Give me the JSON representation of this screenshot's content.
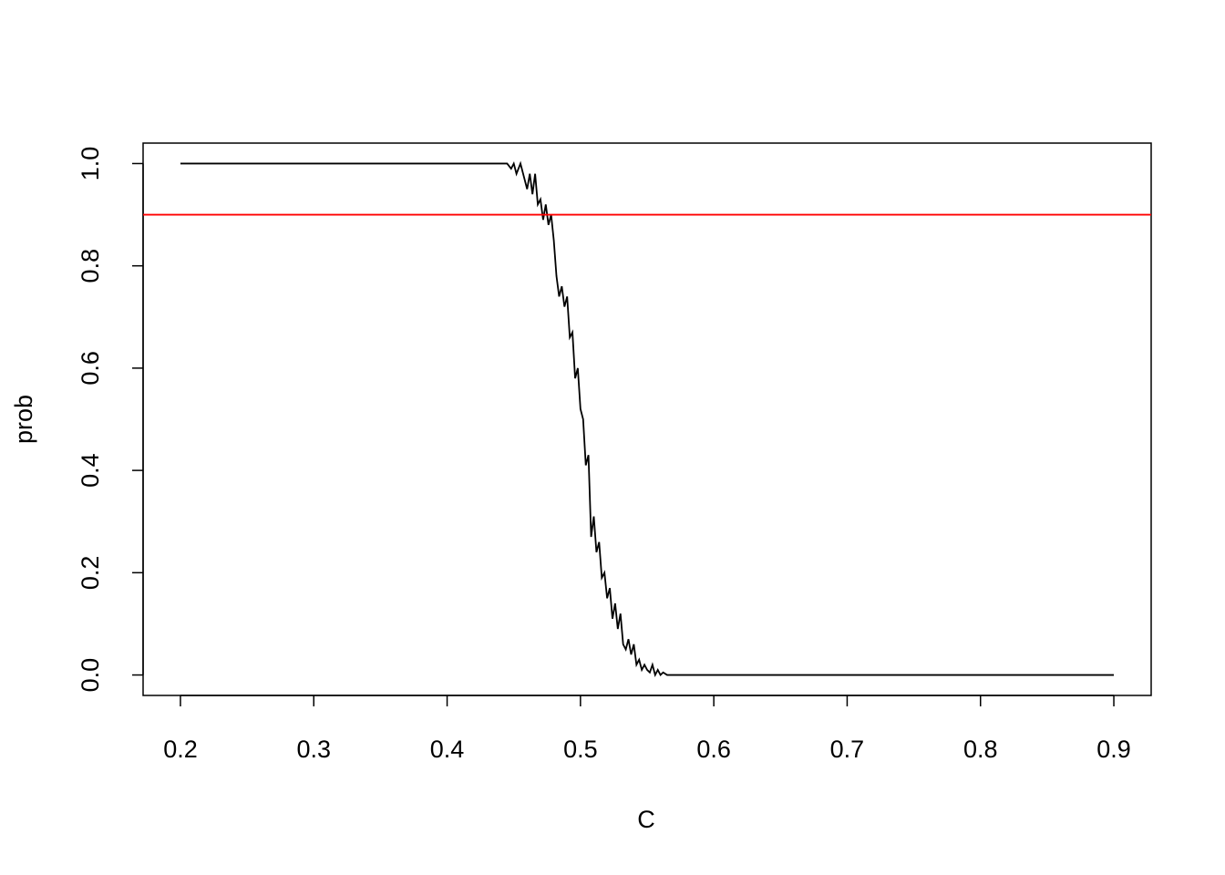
{
  "chart_data": {
    "type": "line",
    "xlabel": "C",
    "ylabel": "prob",
    "x": [
      0.2,
      0.44,
      0.445,
      0.448,
      0.45,
      0.452,
      0.455,
      0.458,
      0.46,
      0.462,
      0.464,
      0.466,
      0.468,
      0.47,
      0.472,
      0.474,
      0.476,
      0.478,
      0.48,
      0.482,
      0.484,
      0.486,
      0.488,
      0.49,
      0.492,
      0.494,
      0.496,
      0.498,
      0.5,
      0.502,
      0.504,
      0.506,
      0.508,
      0.51,
      0.512,
      0.514,
      0.516,
      0.518,
      0.52,
      0.522,
      0.524,
      0.526,
      0.528,
      0.53,
      0.532,
      0.534,
      0.536,
      0.538,
      0.54,
      0.542,
      0.544,
      0.546,
      0.548,
      0.55,
      0.552,
      0.554,
      0.556,
      0.558,
      0.56,
      0.562,
      0.565,
      0.9
    ],
    "series": [
      {
        "color": "#000000",
        "values": [
          1,
          1,
          1,
          0.99,
          1,
          0.98,
          1,
          0.97,
          0.95,
          0.98,
          0.94,
          0.98,
          0.92,
          0.93,
          0.89,
          0.92,
          0.88,
          0.9,
          0.85,
          0.78,
          0.74,
          0.76,
          0.72,
          0.74,
          0.66,
          0.67,
          0.58,
          0.6,
          0.52,
          0.5,
          0.41,
          0.43,
          0.27,
          0.31,
          0.24,
          0.26,
          0.19,
          0.2,
          0.15,
          0.17,
          0.11,
          0.14,
          0.09,
          0.12,
          0.06,
          0.05,
          0.07,
          0.04,
          0.06,
          0.02,
          0.03,
          0.01,
          0.02,
          0.01,
          0.005,
          0.02,
          0,
          0.01,
          0,
          0.005,
          0,
          0
        ]
      }
    ],
    "hlines": [
      {
        "value": 0.9,
        "color": "#ff0000"
      }
    ],
    "xlim": [
      0.172,
      0.928
    ],
    "ylim": [
      -0.04,
      1.04
    ],
    "xticks": [
      0.2,
      0.3,
      0.4,
      0.5,
      0.6,
      0.7,
      0.8,
      0.9
    ],
    "yticks": [
      {
        "value": 0,
        "label": "0.0"
      },
      0.2,
      0.4,
      0.6,
      0.8,
      {
        "value": 1,
        "label": "1.0"
      }
    ]
  }
}
